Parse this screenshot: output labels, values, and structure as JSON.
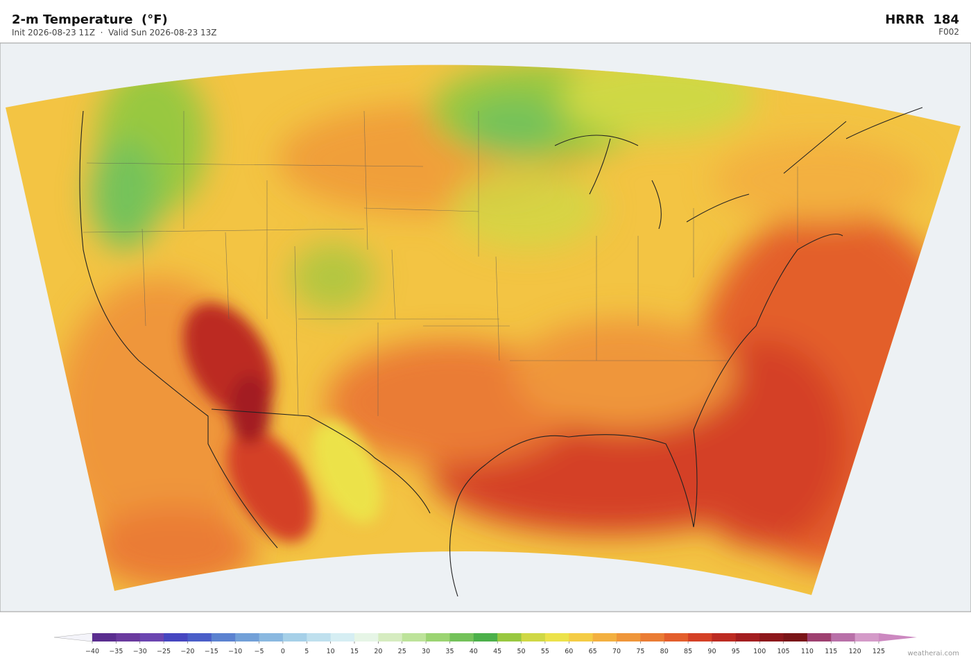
{
  "header": {
    "title": "2-m Temperature  (°F)",
    "subtitle": "Init 2026-08-23 11Z  ·  Valid Sun 2026-08-23 13Z",
    "model": "HRRR  184",
    "forecast_hour": "F002"
  },
  "colorbar": {
    "ticks": [
      {
        "value": -40,
        "label": "−40"
      },
      {
        "value": -35,
        "label": "−35"
      },
      {
        "value": -30,
        "label": "−30"
      },
      {
        "value": -25,
        "label": "−25"
      },
      {
        "value": -20,
        "label": "−20"
      },
      {
        "value": -15,
        "label": "−15"
      },
      {
        "value": -10,
        "label": "−10"
      },
      {
        "value": -5,
        "label": "−5"
      },
      0,
      5,
      10,
      15,
      20,
      25,
      30,
      35,
      40,
      45,
      50,
      55,
      60,
      65,
      70,
      75,
      80,
      85,
      90,
      95,
      100,
      105,
      110,
      115,
      120,
      125
    ],
    "colors": [
      "#5a2d8f",
      "#6a3a9e",
      "#6b45b0",
      "#4646c0",
      "#4a5ec8",
      "#5b82d0",
      "#72a0d8",
      "#8ab8e0",
      "#a6d0e8",
      "#bfe0ee",
      "#d6eef3",
      "#e6f5e6",
      "#d6ecc0",
      "#bde39a",
      "#9bd472",
      "#74c25a",
      "#4cb04a",
      "#98c840",
      "#cfd845",
      "#ece24a",
      "#f4cc45",
      "#f3b040",
      "#ef963a",
      "#ea7c34",
      "#e35e2c",
      "#d44026",
      "#bc2b22",
      "#a31e20",
      "#8d181c",
      "#7a1518",
      "#9e4070",
      "#b870a8",
      "#d49ac8"
    ],
    "under_color": "#f4f4fa",
    "over_color": "#cc88c0"
  },
  "footer": {
    "credit": "weatherai.com"
  }
}
